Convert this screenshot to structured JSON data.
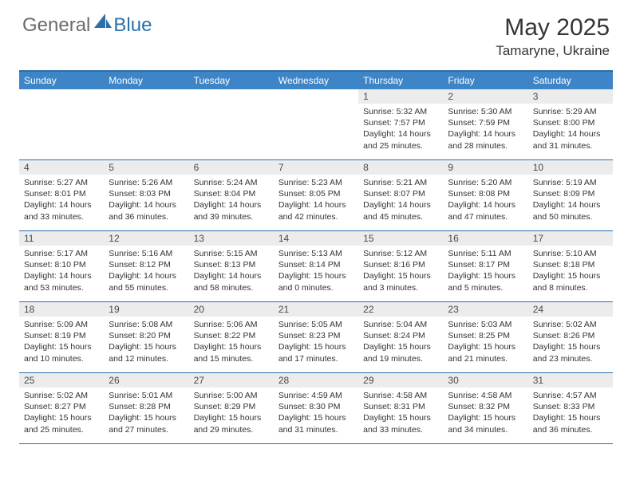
{
  "brand": {
    "part1": "General",
    "part2": "Blue"
  },
  "title": "May 2025",
  "location": "Tamaryne, Ukraine",
  "colors": {
    "header_bg": "#3d85c6",
    "border": "#2b6fab",
    "daynum_bg": "#ececec",
    "logo_gray": "#6b6b6b",
    "logo_blue": "#2b6fab"
  },
  "day_headers": [
    "Sunday",
    "Monday",
    "Tuesday",
    "Wednesday",
    "Thursday",
    "Friday",
    "Saturday"
  ],
  "weeks": [
    [
      {
        "n": "",
        "sr": "",
        "ss": "",
        "dl": ""
      },
      {
        "n": "",
        "sr": "",
        "ss": "",
        "dl": ""
      },
      {
        "n": "",
        "sr": "",
        "ss": "",
        "dl": ""
      },
      {
        "n": "",
        "sr": "",
        "ss": "",
        "dl": ""
      },
      {
        "n": "1",
        "sr": "Sunrise: 5:32 AM",
        "ss": "Sunset: 7:57 PM",
        "dl": "Daylight: 14 hours and 25 minutes."
      },
      {
        "n": "2",
        "sr": "Sunrise: 5:30 AM",
        "ss": "Sunset: 7:59 PM",
        "dl": "Daylight: 14 hours and 28 minutes."
      },
      {
        "n": "3",
        "sr": "Sunrise: 5:29 AM",
        "ss": "Sunset: 8:00 PM",
        "dl": "Daylight: 14 hours and 31 minutes."
      }
    ],
    [
      {
        "n": "4",
        "sr": "Sunrise: 5:27 AM",
        "ss": "Sunset: 8:01 PM",
        "dl": "Daylight: 14 hours and 33 minutes."
      },
      {
        "n": "5",
        "sr": "Sunrise: 5:26 AM",
        "ss": "Sunset: 8:03 PM",
        "dl": "Daylight: 14 hours and 36 minutes."
      },
      {
        "n": "6",
        "sr": "Sunrise: 5:24 AM",
        "ss": "Sunset: 8:04 PM",
        "dl": "Daylight: 14 hours and 39 minutes."
      },
      {
        "n": "7",
        "sr": "Sunrise: 5:23 AM",
        "ss": "Sunset: 8:05 PM",
        "dl": "Daylight: 14 hours and 42 minutes."
      },
      {
        "n": "8",
        "sr": "Sunrise: 5:21 AM",
        "ss": "Sunset: 8:07 PM",
        "dl": "Daylight: 14 hours and 45 minutes."
      },
      {
        "n": "9",
        "sr": "Sunrise: 5:20 AM",
        "ss": "Sunset: 8:08 PM",
        "dl": "Daylight: 14 hours and 47 minutes."
      },
      {
        "n": "10",
        "sr": "Sunrise: 5:19 AM",
        "ss": "Sunset: 8:09 PM",
        "dl": "Daylight: 14 hours and 50 minutes."
      }
    ],
    [
      {
        "n": "11",
        "sr": "Sunrise: 5:17 AM",
        "ss": "Sunset: 8:10 PM",
        "dl": "Daylight: 14 hours and 53 minutes."
      },
      {
        "n": "12",
        "sr": "Sunrise: 5:16 AM",
        "ss": "Sunset: 8:12 PM",
        "dl": "Daylight: 14 hours and 55 minutes."
      },
      {
        "n": "13",
        "sr": "Sunrise: 5:15 AM",
        "ss": "Sunset: 8:13 PM",
        "dl": "Daylight: 14 hours and 58 minutes."
      },
      {
        "n": "14",
        "sr": "Sunrise: 5:13 AM",
        "ss": "Sunset: 8:14 PM",
        "dl": "Daylight: 15 hours and 0 minutes."
      },
      {
        "n": "15",
        "sr": "Sunrise: 5:12 AM",
        "ss": "Sunset: 8:16 PM",
        "dl": "Daylight: 15 hours and 3 minutes."
      },
      {
        "n": "16",
        "sr": "Sunrise: 5:11 AM",
        "ss": "Sunset: 8:17 PM",
        "dl": "Daylight: 15 hours and 5 minutes."
      },
      {
        "n": "17",
        "sr": "Sunrise: 5:10 AM",
        "ss": "Sunset: 8:18 PM",
        "dl": "Daylight: 15 hours and 8 minutes."
      }
    ],
    [
      {
        "n": "18",
        "sr": "Sunrise: 5:09 AM",
        "ss": "Sunset: 8:19 PM",
        "dl": "Daylight: 15 hours and 10 minutes."
      },
      {
        "n": "19",
        "sr": "Sunrise: 5:08 AM",
        "ss": "Sunset: 8:20 PM",
        "dl": "Daylight: 15 hours and 12 minutes."
      },
      {
        "n": "20",
        "sr": "Sunrise: 5:06 AM",
        "ss": "Sunset: 8:22 PM",
        "dl": "Daylight: 15 hours and 15 minutes."
      },
      {
        "n": "21",
        "sr": "Sunrise: 5:05 AM",
        "ss": "Sunset: 8:23 PM",
        "dl": "Daylight: 15 hours and 17 minutes."
      },
      {
        "n": "22",
        "sr": "Sunrise: 5:04 AM",
        "ss": "Sunset: 8:24 PM",
        "dl": "Daylight: 15 hours and 19 minutes."
      },
      {
        "n": "23",
        "sr": "Sunrise: 5:03 AM",
        "ss": "Sunset: 8:25 PM",
        "dl": "Daylight: 15 hours and 21 minutes."
      },
      {
        "n": "24",
        "sr": "Sunrise: 5:02 AM",
        "ss": "Sunset: 8:26 PM",
        "dl": "Daylight: 15 hours and 23 minutes."
      }
    ],
    [
      {
        "n": "25",
        "sr": "Sunrise: 5:02 AM",
        "ss": "Sunset: 8:27 PM",
        "dl": "Daylight: 15 hours and 25 minutes."
      },
      {
        "n": "26",
        "sr": "Sunrise: 5:01 AM",
        "ss": "Sunset: 8:28 PM",
        "dl": "Daylight: 15 hours and 27 minutes."
      },
      {
        "n": "27",
        "sr": "Sunrise: 5:00 AM",
        "ss": "Sunset: 8:29 PM",
        "dl": "Daylight: 15 hours and 29 minutes."
      },
      {
        "n": "28",
        "sr": "Sunrise: 4:59 AM",
        "ss": "Sunset: 8:30 PM",
        "dl": "Daylight: 15 hours and 31 minutes."
      },
      {
        "n": "29",
        "sr": "Sunrise: 4:58 AM",
        "ss": "Sunset: 8:31 PM",
        "dl": "Daylight: 15 hours and 33 minutes."
      },
      {
        "n": "30",
        "sr": "Sunrise: 4:58 AM",
        "ss": "Sunset: 8:32 PM",
        "dl": "Daylight: 15 hours and 34 minutes."
      },
      {
        "n": "31",
        "sr": "Sunrise: 4:57 AM",
        "ss": "Sunset: 8:33 PM",
        "dl": "Daylight: 15 hours and 36 minutes."
      }
    ]
  ]
}
